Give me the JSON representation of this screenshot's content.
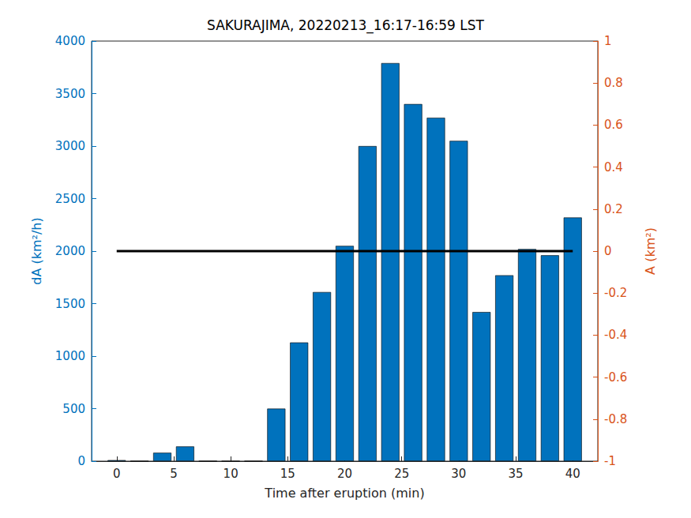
{
  "chart_data": {
    "type": "bar",
    "title": "SAKURAJIMA, 20220213_16:17-16:59 LST",
    "xlabel": "Time after eruption (min)",
    "ylabel": "dA (km²/h)",
    "y2label": "A (km²)",
    "x": [
      0,
      2,
      4,
      6,
      8,
      10,
      12,
      14,
      16,
      18,
      20,
      22,
      24,
      26,
      28,
      30,
      32,
      34,
      36,
      38,
      40
    ],
    "series": [
      {
        "type": "bar",
        "color": "#0072bd",
        "values": [
          10,
          0,
          80,
          140,
          0,
          0,
          0,
          500,
          1130,
          1610,
          2050,
          3000,
          3790,
          3400,
          3270,
          3050,
          1420,
          1770,
          2020,
          1960,
          2320
        ]
      },
      {
        "type": "line",
        "color": "#000000",
        "axis": "y2",
        "values": [
          0,
          0,
          0,
          0,
          0,
          0,
          0,
          0,
          0,
          0,
          0,
          0,
          0,
          0,
          0,
          0,
          0,
          0,
          0,
          0,
          0
        ]
      }
    ],
    "xlim": [
      -2.2,
      42.2
    ],
    "xticks": [
      0,
      5,
      10,
      15,
      20,
      25,
      30,
      35,
      40
    ],
    "ylim": [
      0,
      4000
    ],
    "yticks": [
      0,
      500,
      1000,
      1500,
      2000,
      2500,
      3000,
      3500,
      4000
    ],
    "y2lim": [
      -1,
      1
    ],
    "y2ticks": [
      -1,
      -0.8,
      -0.6,
      -0.4,
      -0.2,
      0,
      0.2,
      0.4,
      0.6,
      0.8,
      1
    ],
    "grid": false
  }
}
